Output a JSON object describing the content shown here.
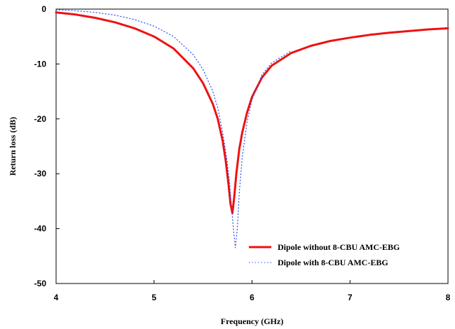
{
  "chart_data": {
    "type": "line",
    "title": "",
    "xlabel": "Frequency (GHz)",
    "ylabel": "Return loss (dB)",
    "xlim": [
      4,
      8
    ],
    "ylim": [
      -50,
      0
    ],
    "xticks": [
      4,
      5,
      6,
      7,
      8
    ],
    "yticks": [
      0,
      -10,
      -20,
      -30,
      -40,
      -50
    ],
    "xtick_labels": [
      "4",
      "5",
      "6",
      "7",
      "8"
    ],
    "ytick_labels": [
      "0",
      "-10",
      "-20",
      "-30",
      "-40",
      "-50"
    ],
    "grid": false,
    "legend_position": "bottom-right",
    "series": [
      {
        "name": "Dipole without 8-CBU AMC-EBG",
        "color": "#ee1111",
        "style": "solid",
        "x": [
          4.0,
          4.2,
          4.4,
          4.6,
          4.8,
          5.0,
          5.2,
          5.4,
          5.5,
          5.6,
          5.65,
          5.7,
          5.73,
          5.76,
          5.78,
          5.8,
          5.82,
          5.84,
          5.87,
          5.9,
          5.95,
          6.0,
          6.1,
          6.2,
          6.4,
          6.6,
          6.8,
          7.0,
          7.2,
          7.4,
          7.6,
          7.8,
          8.0
        ],
        "y": [
          -0.6,
          -1.0,
          -1.6,
          -2.4,
          -3.5,
          -5.0,
          -7.2,
          -10.8,
          -13.5,
          -17.3,
          -20.0,
          -24.0,
          -27.5,
          -32.0,
          -35.5,
          -37.2,
          -34.0,
          -30.0,
          -25.5,
          -22.5,
          -18.8,
          -16.0,
          -12.5,
          -10.3,
          -8.0,
          -6.7,
          -5.8,
          -5.2,
          -4.7,
          -4.3,
          -4.0,
          -3.7,
          -3.5
        ]
      },
      {
        "name": "Dipole with 8-CBU AMC-EBG",
        "color": "#3355ee",
        "style": "dotted",
        "x": [
          4.0,
          4.2,
          4.4,
          4.6,
          4.8,
          5.0,
          5.2,
          5.4,
          5.5,
          5.6,
          5.65,
          5.7,
          5.74,
          5.77,
          5.79,
          5.81,
          5.83,
          5.85,
          5.87,
          5.9,
          5.95,
          6.0,
          6.1,
          6.2,
          6.4
        ],
        "y": [
          -0.1,
          -0.3,
          -0.6,
          -1.1,
          -1.9,
          -3.1,
          -5.0,
          -8.3,
          -11.0,
          -15.0,
          -18.0,
          -22.5,
          -27.0,
          -31.5,
          -36.0,
          -40.0,
          -43.5,
          -40.0,
          -33.5,
          -27.0,
          -20.5,
          -16.5,
          -12.0,
          -9.8,
          -7.6
        ]
      }
    ]
  }
}
